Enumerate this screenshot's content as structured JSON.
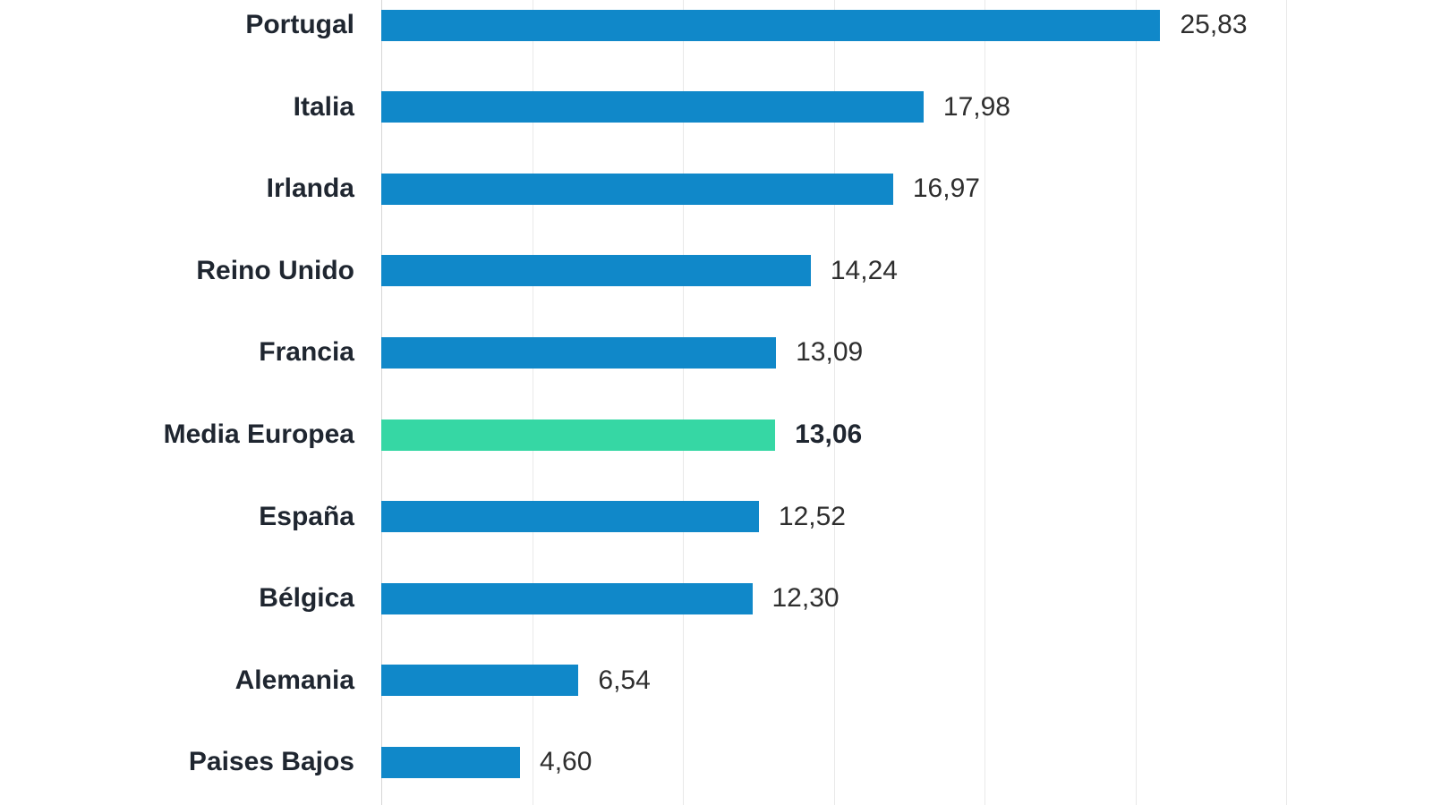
{
  "chart_data": {
    "type": "bar",
    "orientation": "horizontal",
    "categories": [
      "Portugal",
      "Italia",
      "Irlanda",
      "Reino Unido",
      "Francia",
      "Media Europea",
      "España",
      "Bélgica",
      "Alemania",
      "Paises Bajos"
    ],
    "values": [
      25.83,
      17.98,
      16.97,
      14.24,
      13.09,
      13.06,
      12.52,
      12.3,
      6.54,
      4.6
    ],
    "value_labels": [
      "25,83",
      "17,98",
      "16,97",
      "14,24",
      "13,09",
      "13,06",
      "12,52",
      "12,30",
      "6,54",
      "4,60"
    ],
    "highlight_index": 5,
    "decimal_separator": ",",
    "xlabel": "",
    "ylabel": "",
    "xlim": [
      0,
      35
    ],
    "grid_step": 5,
    "grid": "on",
    "legend": "none",
    "colors": {
      "bar": "#1088c9",
      "highlight_bar": "#36d7a4",
      "category_text": "#1f2630",
      "value_text": "#2e2e2e",
      "gridline": "#e9e9e9",
      "axis_line": "#d6d6d6",
      "background": "#ffffff"
    }
  }
}
